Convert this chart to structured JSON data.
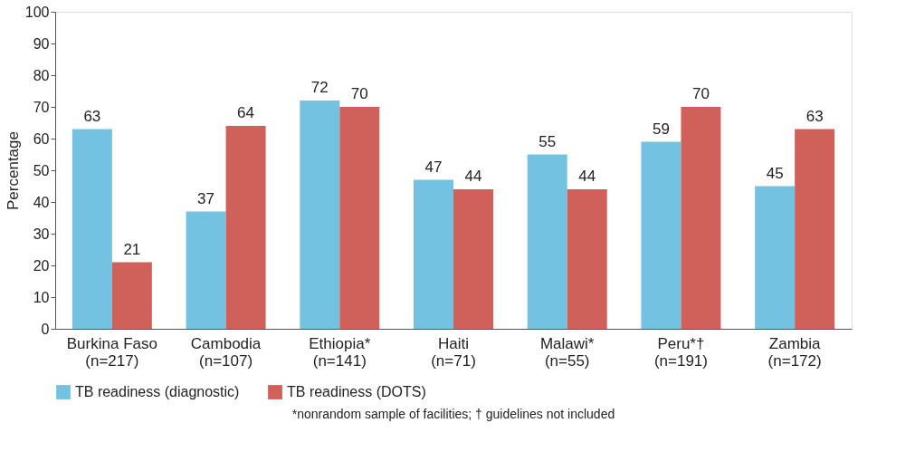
{
  "chart_data": {
    "type": "bar",
    "ylabel": "Percentage",
    "categories": [
      "Burkina Faso\n(n=217)",
      "Cambodia\n(n=107)",
      "Ethiopia*\n(n=141)",
      "Haiti\n(n=71)",
      "Malawi*\n(n=55)",
      "Peru*†\n(n=191)",
      "Zambia\n(n=172)"
    ],
    "series": [
      {
        "name": "TB readiness (diagnostic)",
        "color": "#74c2e1",
        "values": [
          63,
          37,
          72,
          47,
          55,
          59,
          45
        ]
      },
      {
        "name": "TB readiness (DOTS)",
        "color": "#d0605a",
        "values": [
          21,
          64,
          70,
          44,
          44,
          70,
          63
        ]
      }
    ],
    "ylim": [
      0,
      100
    ],
    "yticks": [
      0,
      10,
      20,
      30,
      40,
      50,
      60,
      70,
      80,
      90,
      100
    ],
    "data_labels": true,
    "grid": false,
    "legend": "bottom",
    "annotations": [
      "*nonrandom sample of facilities;   † guidelines not included"
    ]
  }
}
